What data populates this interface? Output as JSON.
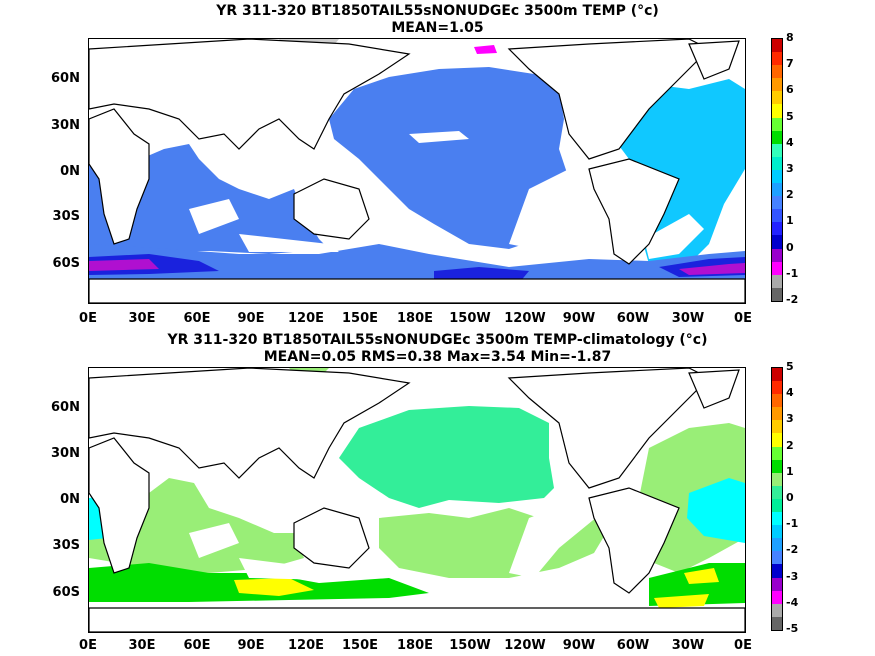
{
  "panel_top": {
    "title": "YR 311-320 BT1850TAIL55sNONUDGEc 3500m TEMP (°c)",
    "subtitle": "MEAN=1.05",
    "colorbar_ticks": [
      "8",
      "7",
      "6",
      "5",
      "4",
      "3",
      "2",
      "1",
      "0",
      "-1",
      "-2"
    ],
    "colorbar_colors": [
      "#cc0000",
      "#ff2a00",
      "#ff6600",
      "#ff9900",
      "#ffcc00",
      "#ffff00",
      "#66ff33",
      "#00dd00",
      "#33ffbb",
      "#00eecc",
      "#00ccff",
      "#1ea0ff",
      "#4682ff",
      "#3355ff",
      "#2222ff",
      "#0000cc",
      "#9900cc",
      "#ff00ff",
      "#aaaaaa",
      "#666666"
    ]
  },
  "panel_bottom": {
    "title": "YR 311-320 BT1850TAIL55sNONUDGEc 3500m TEMP-climatology (°c)",
    "subtitle": "MEAN=0.05   RMS=0.38   Max=3.54   Min=-1.87",
    "colorbar_ticks": [
      "5",
      "4",
      "3",
      "2",
      "1",
      "0",
      "-1",
      "-2",
      "-3",
      "-4",
      "-5"
    ],
    "colorbar_colors": [
      "#cc0000",
      "#ff2a00",
      "#ff6600",
      "#ff9900",
      "#ffcc00",
      "#ffff00",
      "#66ff33",
      "#00dd00",
      "#99ee77",
      "#33ee99",
      "#00ee99",
      "#00ffff",
      "#00ccff",
      "#1ea0ff",
      "#4682ff",
      "#0000cc",
      "#9900cc",
      "#ff00ff",
      "#aaaaaa",
      "#666666"
    ]
  },
  "lat_labels": [
    "60N",
    "30N",
    "0N",
    "30S",
    "60S"
  ],
  "lon_labels": [
    "0E",
    "30E",
    "60E",
    "90E",
    "120E",
    "150E",
    "180E",
    "150W",
    "120W",
    "90W",
    "60W",
    "30W",
    "0E"
  ],
  "colors": {
    "top_main": "#4a7ff0",
    "top_light": "#3399ff",
    "top_cyan": "#10c8ff",
    "top_deep": "#1a22dd",
    "top_purple": "#b010d0",
    "bot_main": "#33ee99",
    "bot_light": "#99ee77",
    "bot_green": "#00dd00",
    "bot_yellow": "#ffff00",
    "bot_cyan": "#00ffff"
  }
}
